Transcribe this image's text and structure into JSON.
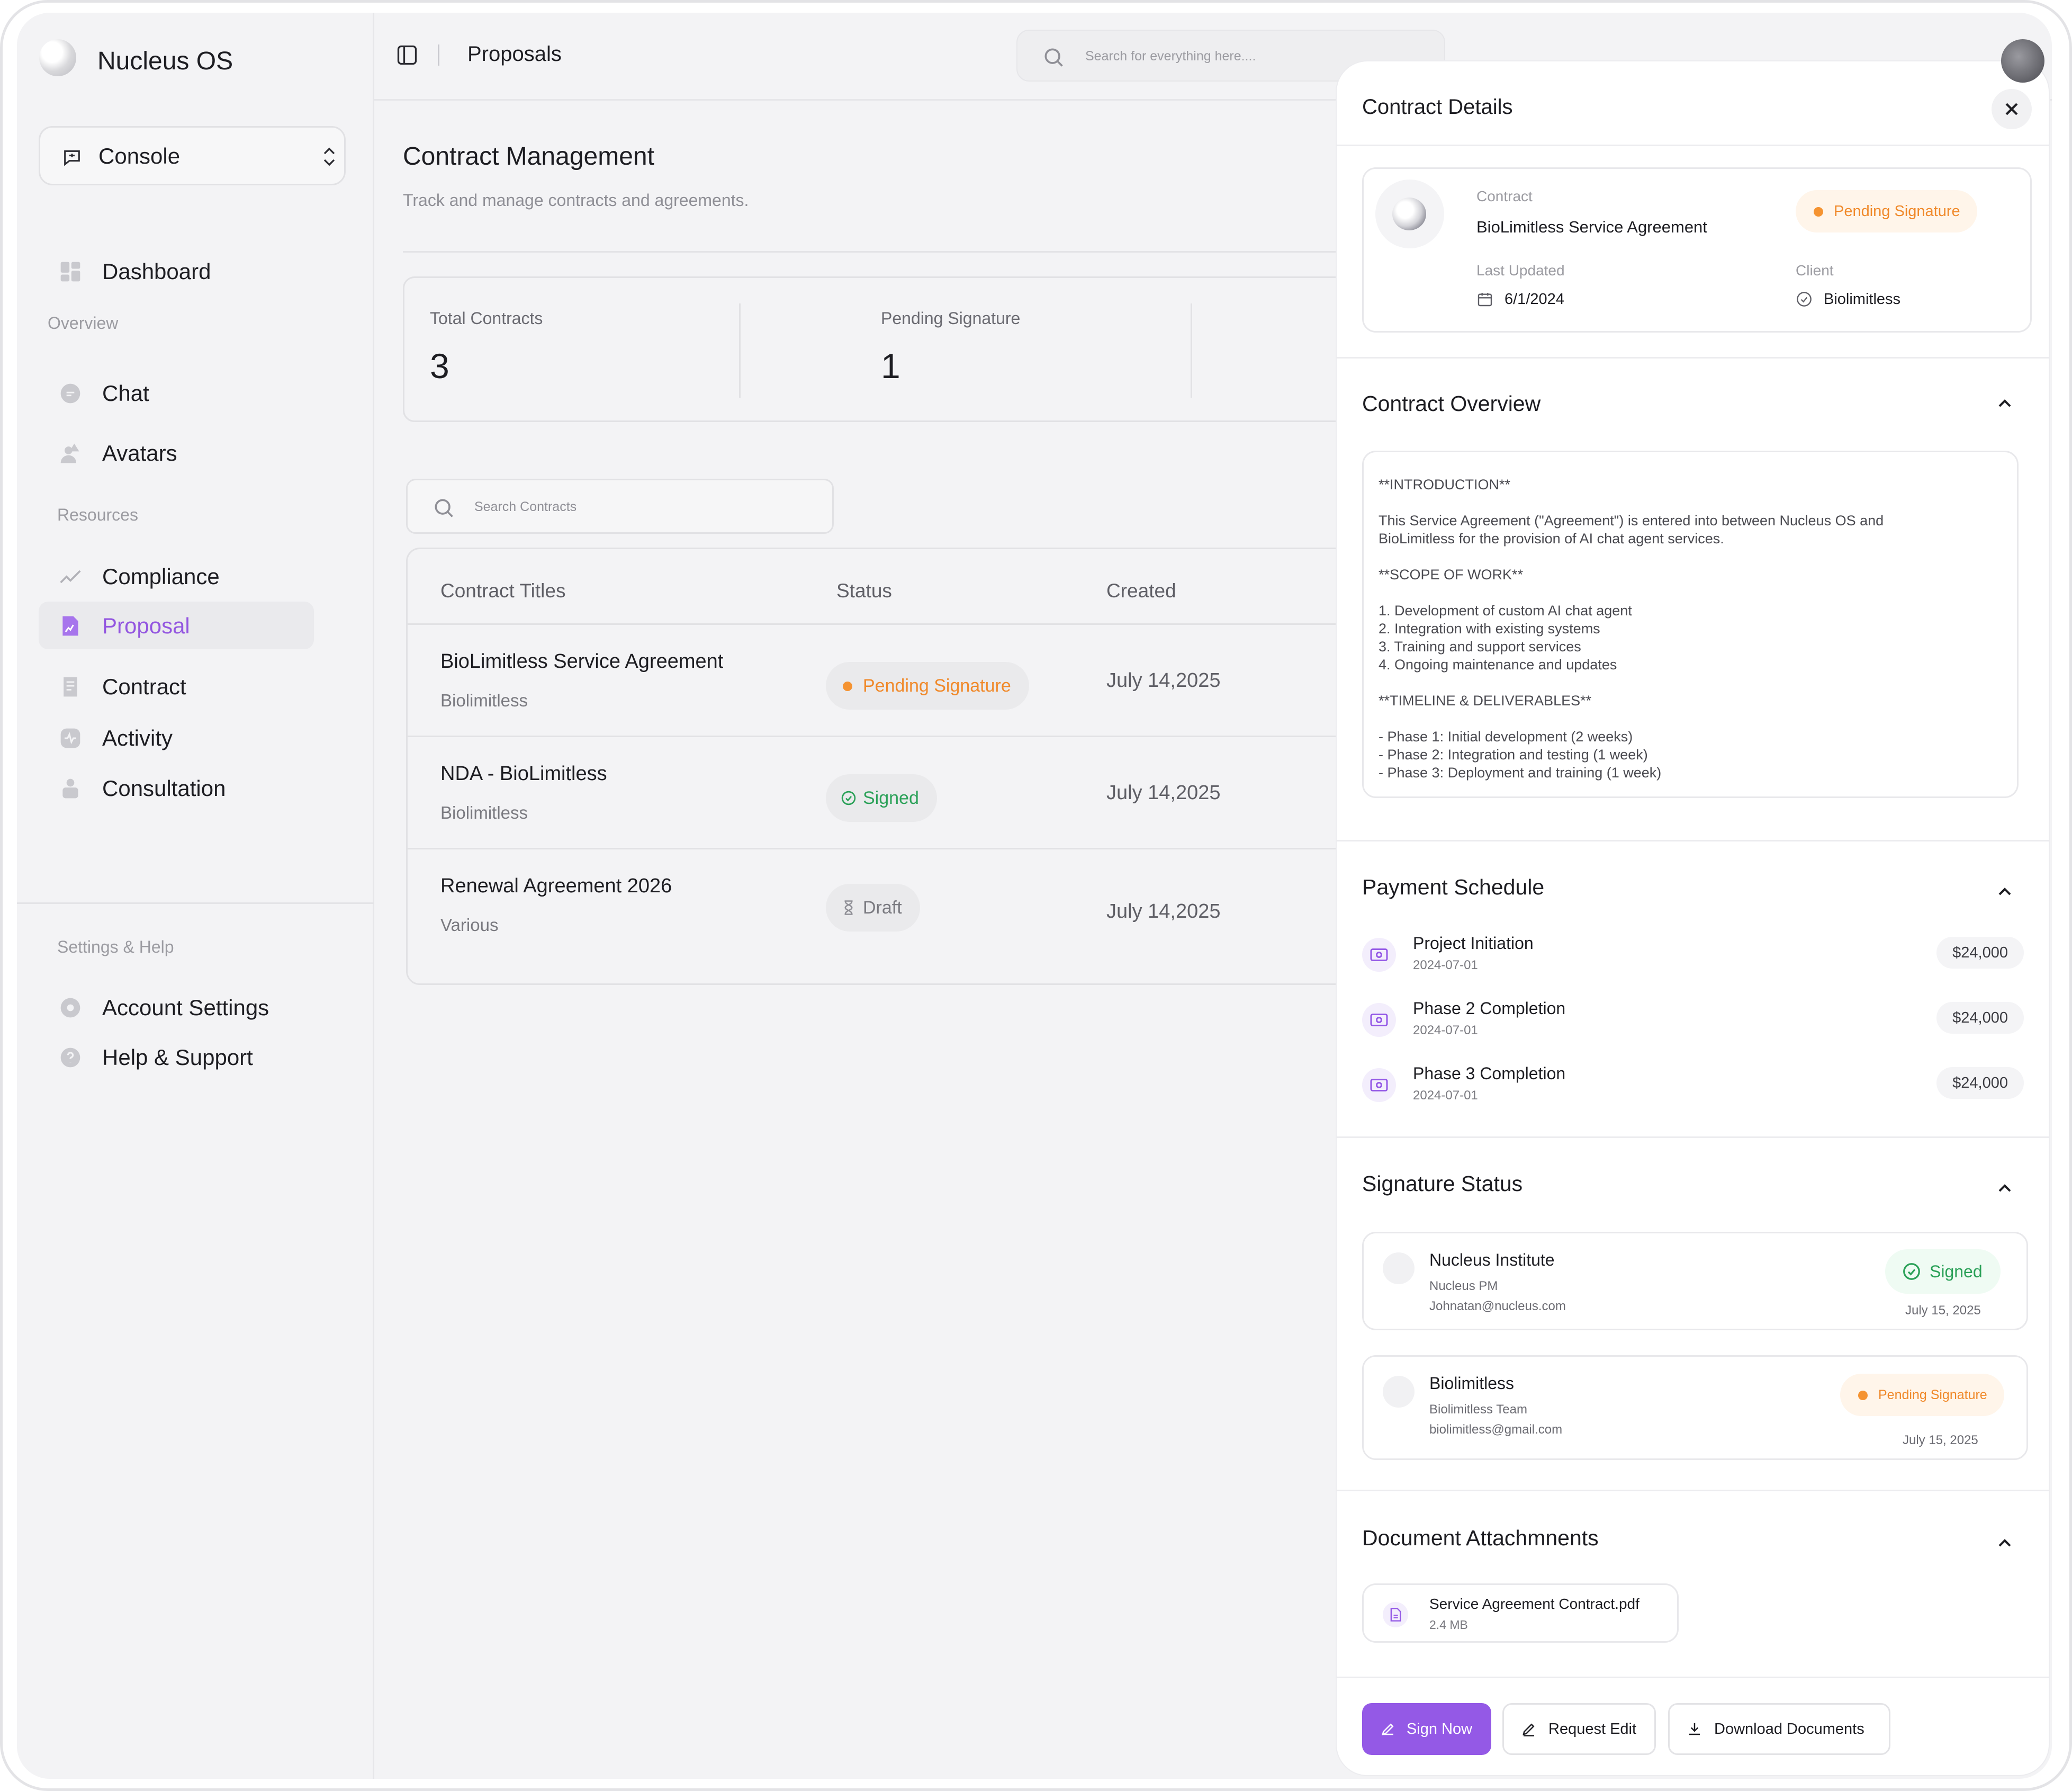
{
  "app": {
    "name": "Nucleus OS"
  },
  "sidebar": {
    "console_label": "Console",
    "items": [
      {
        "label": "Dashboard"
      },
      {
        "label": "Chat"
      },
      {
        "label": "Avatars"
      },
      {
        "label": "Compliance"
      },
      {
        "label": "Proposal"
      },
      {
        "label": "Contract"
      },
      {
        "label": "Activity"
      },
      {
        "label": "Consultation"
      },
      {
        "label": "Account Settings"
      },
      {
        "label": "Help & Support"
      }
    ],
    "sections": {
      "overview": "Overview",
      "resources": "Resources",
      "settings": "Settings & Help"
    }
  },
  "header": {
    "title": "Proposals",
    "search_placeholder": "Search for everything here...."
  },
  "main": {
    "title": "Contract Management",
    "subtitle": "Track and manage  contracts and agreements.",
    "stats": [
      {
        "label": "Total Contracts",
        "value": "3"
      },
      {
        "label": "Pending Signature",
        "value": "1"
      }
    ],
    "search_placeholder": "Search Contracts",
    "table": {
      "headers": [
        "Contract Titles",
        "Status",
        "Created"
      ],
      "rows": [
        {
          "title": "BioLimitless Service Agreement",
          "client": "Biolimitless",
          "status": "Pending Signature",
          "created": "July 14,2025"
        },
        {
          "title": "NDA - BioLimitless",
          "client": "Biolimitless",
          "status": "Signed",
          "created": "July 14,2025"
        },
        {
          "title": "Renewal Agreement 2026",
          "client": "Various",
          "status": "Draft",
          "created": "July 14,2025"
        }
      ]
    }
  },
  "drawer": {
    "title": "Contract Details",
    "summary": {
      "contract_label": "Contract",
      "contract_name": "BioLimitless Service Agreement",
      "status": "Pending Signature",
      "updated_label": "Last Updated",
      "updated_value": "6/1/2024",
      "client_label": "Client",
      "client_value": "Biolimitless"
    },
    "overview": {
      "title": "Contract Overview",
      "lines": [
        "**INTRODUCTION**",
        "This Service Agreement (\"Agreement\") is entered into between Nucleus OS and",
        "BioLimitless for the provision of AI chat agent services.",
        "**SCOPE OF WORK**",
        "1. Development of custom AI chat agent",
        "2. Integration with existing systems",
        "3. Training and support services",
        "4. Ongoing maintenance and updates",
        "**TIMELINE & DELIVERABLES**",
        "- Phase 1: Initial development (2 weeks)",
        "- Phase 2: Integration and testing (1 week)",
        "- Phase 3: Deployment and training (1 week)"
      ]
    },
    "payments": {
      "title": "Payment Schedule",
      "items": [
        {
          "title": "Project Initiation",
          "date": "2024-07-01",
          "amount": "$24,000"
        },
        {
          "title": "Phase 2 Completion",
          "date": "2024-07-01",
          "amount": "$24,000"
        },
        {
          "title": "Phase 3 Completion",
          "date": "2024-07-01",
          "amount": "$24,000"
        }
      ]
    },
    "signatures": {
      "title": "Signature Status",
      "items": [
        {
          "name": "Nucleus Institute",
          "role": "Nucleus PM",
          "email": "Johnatan@nucleus.com",
          "status": "Signed",
          "date": "July 15, 2025"
        },
        {
          "name": "Biolimitless",
          "role": "Biolimitless Team",
          "email": "biolimitless@gmail.com",
          "status": "Pending Signature",
          "date": "July 15, 2025"
        }
      ]
    },
    "attachments": {
      "title": "Document Attachmnents",
      "file_name": "Service Agreement Contract.pdf",
      "file_size": "2.4 MB"
    },
    "actions": {
      "sign": "Sign Now",
      "edit": "Request Edit",
      "download": "Download  Documents"
    }
  },
  "colors": {
    "accent": "#9459e6",
    "pending": "#f59331",
    "signed": "#2ba158"
  }
}
